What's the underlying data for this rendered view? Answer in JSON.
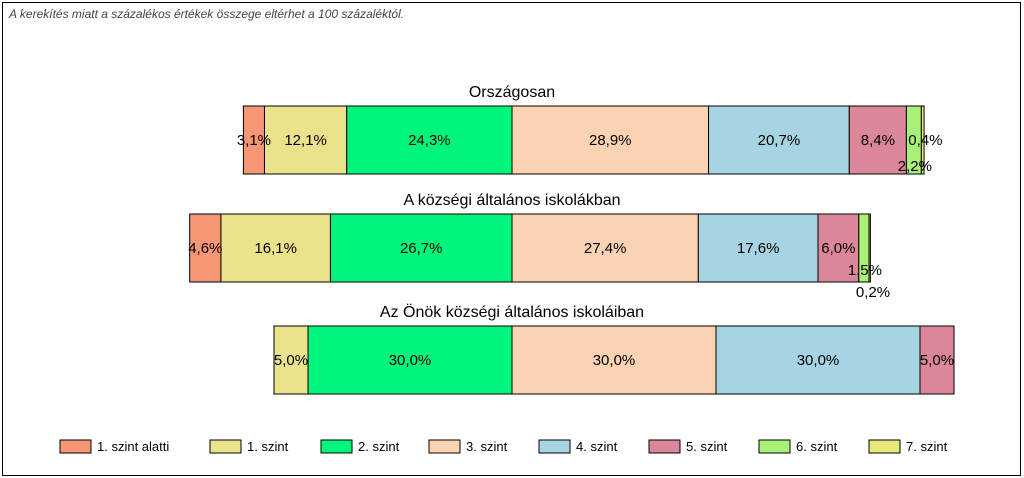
{
  "note": "A kerekítés miatt a  százalékos értékek összege eltérhet a 100 százaléktól.",
  "chart_data": {
    "type": "bar",
    "orientation": "horizontal",
    "stacked": true,
    "legend_position": "bottom",
    "grid": false,
    "legend": [
      {
        "name": "1. szint alatti",
        "color": "#F79674"
      },
      {
        "name": "1. szint",
        "color": "#EBE38C"
      },
      {
        "name": "2. szint",
        "color": "#00F57A"
      },
      {
        "name": "3. szint",
        "color": "#FBD3B3"
      },
      {
        "name": "4. szint",
        "color": "#A7D4E3"
      },
      {
        "name": "5. szint",
        "color": "#DC8699"
      },
      {
        "name": "6. szint",
        "color": "#A9F078"
      },
      {
        "name": "7. szint",
        "color": "#E8E87A"
      }
    ],
    "bars": [
      {
        "title": "Országosan",
        "values": [
          3.1,
          12.1,
          24.3,
          28.9,
          20.7,
          8.4,
          2.2,
          0.4
        ],
        "labels": [
          "3,1%",
          "12,1%",
          "24,3%",
          "28,9%",
          "20,7%",
          "8,4%",
          "2,2%",
          "0,4%"
        ]
      },
      {
        "title": "A községi általános iskolákban",
        "values": [
          4.6,
          16.1,
          26.7,
          27.4,
          17.6,
          6.0,
          1.5,
          0.2
        ],
        "labels": [
          "4,6%",
          "16,1%",
          "26,7%",
          "27,4%",
          "17,6%",
          "6,0%",
          "1,5%",
          "0,2%"
        ]
      },
      {
        "title": "Az Önök községi általános iskoláiban",
        "values": [
          0,
          5.0,
          30.0,
          30.0,
          30.0,
          5.0,
          0,
          0
        ],
        "labels": [
          "",
          "5,0%",
          "30,0%",
          "30,0%",
          "30,0%",
          "5,0%",
          "",
          ""
        ]
      }
    ]
  }
}
